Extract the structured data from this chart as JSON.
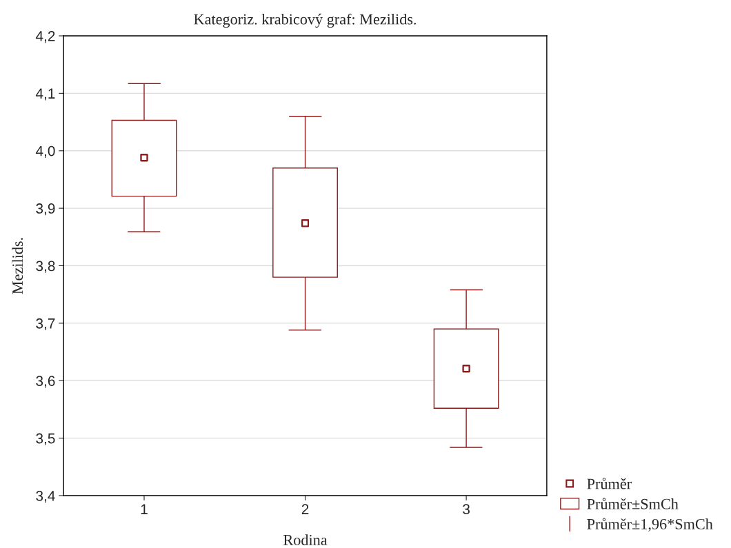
{
  "chart_data": {
    "type": "scatter",
    "title": "Kategoriz. krabicový graf: Mezilids.",
    "xlabel": "Rodina",
    "ylabel": "Mezilids.",
    "categories": [
      "1",
      "2",
      "3"
    ],
    "series": [
      {
        "name": "Průměr",
        "color": "#8b1a1a",
        "marker": "square",
        "x": [
          "1",
          "2",
          "3"
        ],
        "values": [
          3.988,
          3.874,
          3.621
        ]
      },
      {
        "name": "Průměr±SmCh",
        "type": "bar",
        "color": "#8b1a1a",
        "base": [
          3.921,
          3.78,
          3.552
        ],
        "values": [
          0.132,
          0.19,
          0.138
        ]
      },
      {
        "name": "Průměr±1,96*SmCh",
        "color": "#8b1a1a",
        "marker": "square",
        "x": [
          "1",
          "2",
          "3"
        ],
        "values": [
          3.988,
          3.874,
          3.621
        ],
        "errors": [
          0.129,
          0.186,
          0.137
        ]
      }
    ],
    "ylim": [
      3.4,
      4.2
    ],
    "yticks": [
      {
        "value": 3.4,
        "label": "3,4"
      },
      {
        "value": 3.5,
        "label": "3,5"
      },
      {
        "value": 3.6,
        "label": "3,6"
      },
      {
        "value": 3.7,
        "label": "3,7"
      },
      {
        "value": 3.8,
        "label": "3,8"
      },
      {
        "value": 3.9,
        "label": "3,9"
      },
      {
        "value": 4.0,
        "label": "4,0"
      },
      {
        "value": 4.1,
        "label": "4,1"
      },
      {
        "value": 4.2,
        "label": "4,2"
      }
    ],
    "grid": "y",
    "legend": "bottom right"
  }
}
